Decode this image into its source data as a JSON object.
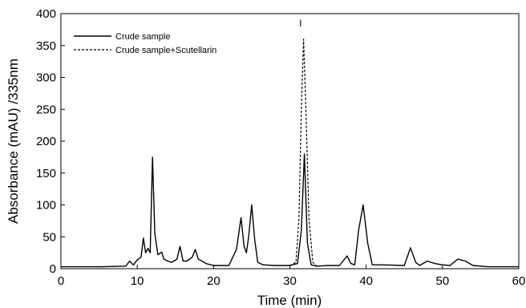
{
  "chart_data": {
    "type": "line",
    "title": "",
    "xlabel": "Time (min)",
    "ylabel": "Absorbance (mAU) /335nm",
    "xlim": [
      0,
      60
    ],
    "ylim": [
      0,
      400
    ],
    "xticks": [
      0,
      10,
      20,
      30,
      40,
      50,
      60
    ],
    "yticks": [
      0,
      50,
      100,
      150,
      200,
      250,
      300,
      350,
      400
    ],
    "grid": false,
    "legend_position": "top-left",
    "annotations": [
      {
        "text": "I",
        "x": 31.4,
        "y": 385
      }
    ],
    "series": [
      {
        "name": "Crude sample",
        "style": "solid",
        "color": "#000000",
        "x": [
          0,
          5,
          8.5,
          9.0,
          9.5,
          10.0,
          10.5,
          10.8,
          11.1,
          11.4,
          11.7,
          12.0,
          12.3,
          12.7,
          13.2,
          13.5,
          14.0,
          14.5,
          15.2,
          15.6,
          16.0,
          16.5,
          17.2,
          17.6,
          18.0,
          18.5,
          19.0,
          20.0,
          22.0,
          23.0,
          23.6,
          24.0,
          24.3,
          24.6,
          25.0,
          25.4,
          25.8,
          26.5,
          28.0,
          30.0,
          31.0,
          31.5,
          31.9,
          32.3,
          32.8,
          33.5,
          35.0,
          36.5,
          37.5,
          38.0,
          38.5,
          39.0,
          39.6,
          40.2,
          40.8,
          42.0,
          45.0,
          45.8,
          46.5,
          47.0,
          48.0,
          49.0,
          50.0,
          51.0,
          52.0,
          53.0,
          54.0,
          56.0,
          58.0,
          60.0
        ],
        "y": [
          3,
          3,
          4,
          12,
          6,
          14,
          18,
          48,
          25,
          32,
          25,
          175,
          55,
          22,
          26,
          15,
          12,
          10,
          15,
          35,
          12,
          12,
          18,
          30,
          15,
          12,
          8,
          5,
          5,
          30,
          80,
          35,
          25,
          50,
          100,
          45,
          10,
          6,
          5,
          5,
          8,
          60,
          180,
          40,
          6,
          4,
          5,
          5,
          20,
          8,
          6,
          60,
          100,
          40,
          6,
          6,
          5,
          33,
          10,
          5,
          12,
          8,
          6,
          5,
          15,
          12,
          5,
          3,
          3,
          3
        ]
      },
      {
        "name": "Crude sample+Scutellarin",
        "style": "dashed",
        "color": "#000000",
        "x": [
          30.0,
          30.8,
          31.2,
          31.5,
          31.8,
          32.1,
          32.5,
          33.0,
          33.5
        ],
        "y": [
          5,
          10,
          80,
          250,
          360,
          250,
          80,
          10,
          4
        ]
      }
    ]
  }
}
